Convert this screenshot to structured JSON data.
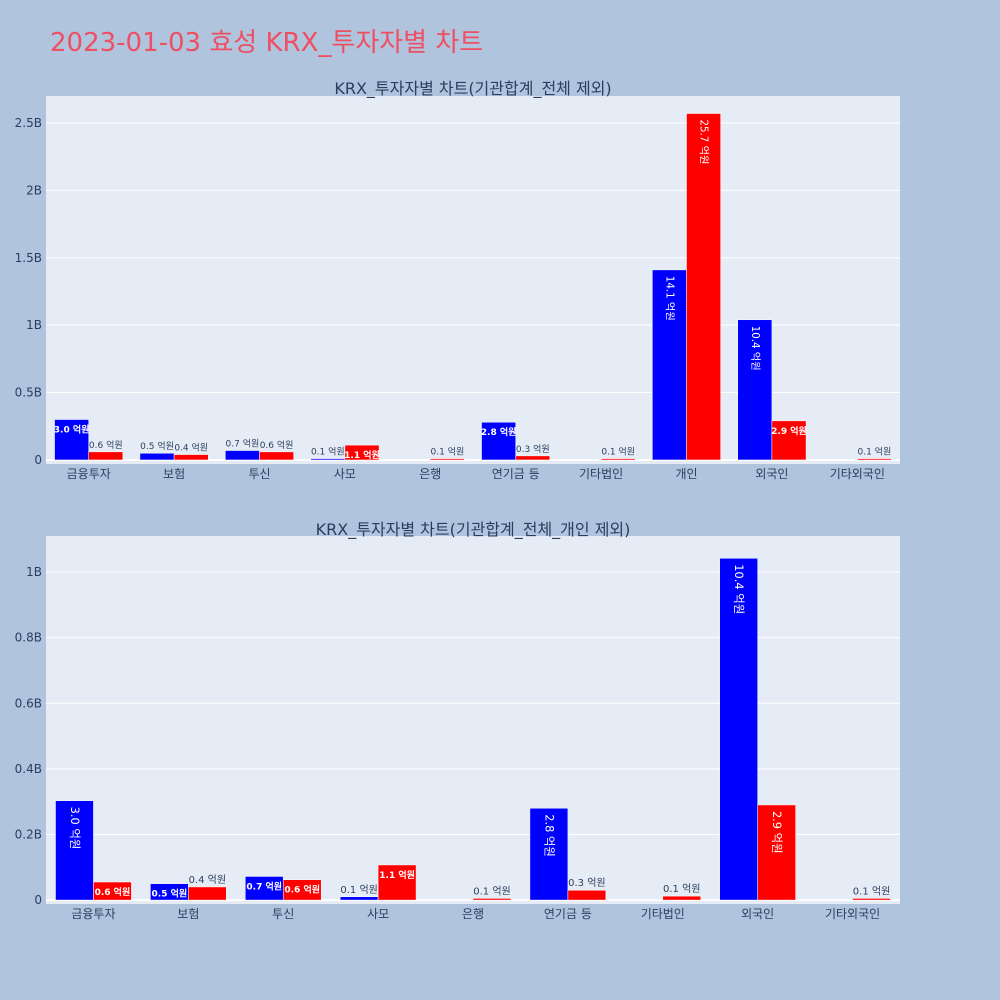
{
  "page": {
    "title": "2023-01-03 효성 KRX_투자자별 차트"
  },
  "colors": {
    "buy": "#0000ff",
    "sell": "#ff0000",
    "plot_bg": "#e5ecf6",
    "grid": "#ffffff",
    "text": "#2a3f5f",
    "page_bg": "#b0c4de"
  },
  "chart_data": [
    {
      "type": "bar",
      "title": "KRX_투자자별 차트(기관합계_전체 제외)",
      "categories": [
        "금융투자",
        "보험",
        "투신",
        "사모",
        "은행",
        "연기금 등",
        "기타법인",
        "개인",
        "외국인",
        "기타외국인"
      ],
      "series": [
        {
          "color": "#0000ff",
          "values": [
            300000000,
            50000000,
            70000000,
            10000000,
            0,
            280000000,
            0,
            1410000000,
            1040000000,
            0
          ],
          "labels": [
            "3.0 억원",
            "0.5 억원",
            "0.7 억원",
            "0.1 억원",
            "",
            "2.8 억원",
            "",
            "14.1 억원",
            "10.4 억원",
            ""
          ]
        },
        {
          "color": "#ff0000",
          "values": [
            60000000,
            40000000,
            60000000,
            110000000,
            10000000,
            30000000,
            10000000,
            2570000000,
            290000000,
            10000000
          ],
          "labels": [
            "0.6 억원",
            "0.4 억원",
            "0.6 억원",
            "1.1 억원",
            "0.1 억원",
            "0.3 억원",
            "0.1 억원",
            "25.7 억원",
            "2.9 억원",
            "0.1 억원"
          ]
        }
      ],
      "ylim": [
        -30000000,
        2700000000
      ],
      "yticks": [
        0,
        500000000,
        1000000000,
        1500000000,
        2000000000,
        2500000000
      ],
      "ytick_labels": [
        "0",
        "0.5B",
        "1B",
        "1.5B",
        "2B",
        "2.5B"
      ],
      "grid": true
    },
    {
      "type": "bar",
      "title": "KRX_투자자별 차트(기관합계_전체_개인 제외)",
      "categories": [
        "금융투자",
        "보험",
        "투신",
        "사모",
        "은행",
        "연기금 등",
        "기타법인",
        "외국인",
        "기타외국인"
      ],
      "series": [
        {
          "color": "#0000ff",
          "values": [
            303000000,
            50000000,
            72000000,
            10000000,
            0,
            280000000,
            0,
            1042000000,
            0
          ],
          "labels": [
            "3.0 억원",
            "0.5 억원",
            "0.7 억원",
            "0.1 억원",
            "",
            "2.8 억원",
            "",
            "10.4 억원",
            ""
          ]
        },
        {
          "color": "#ff0000",
          "values": [
            55000000,
            40000000,
            62000000,
            107000000,
            5000000,
            30000000,
            12000000,
            290000000,
            5000000
          ],
          "labels": [
            "0.6 억원",
            "0.4 억원",
            "0.6 억원",
            "1.1 억원",
            "0.1 억원",
            "0.3 억원",
            "0.1 억원",
            "2.9 억원",
            "0.1 억원"
          ]
        }
      ],
      "ylim": [
        -12000000,
        1110000000
      ],
      "yticks": [
        0,
        200000000,
        400000000,
        600000000,
        800000000,
        1000000000
      ],
      "ytick_labels": [
        "0",
        "0.2B",
        "0.4B",
        "0.6B",
        "0.8B",
        "1B"
      ],
      "grid": true
    }
  ]
}
